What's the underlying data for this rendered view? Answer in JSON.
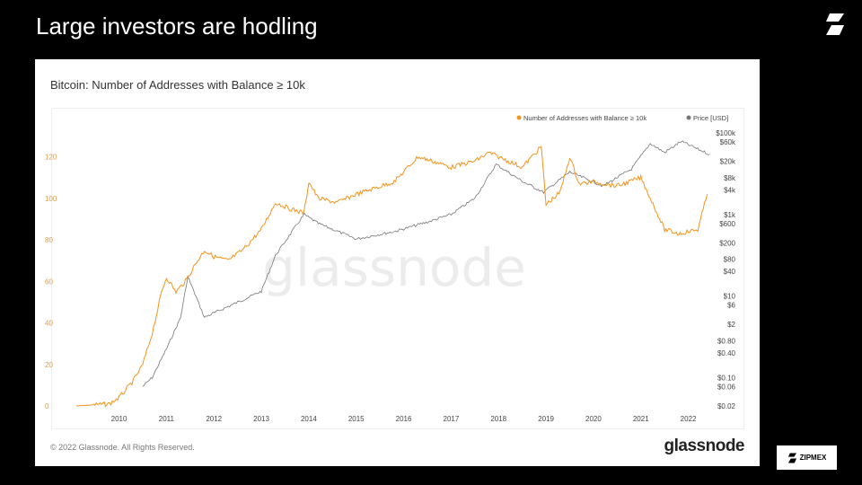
{
  "slide": {
    "title": "Large investors are hodling",
    "brand": "ZIPMEX"
  },
  "colors": {
    "orange": "#f7931a",
    "gray": "#777777"
  },
  "footer": {
    "copyright": "© 2022 Glassnode. All Rights Reserved.",
    "logo": "glassnode"
  },
  "chart_data": {
    "type": "line",
    "title": "Bitcoin: Number of Addresses with Balance ≥ 10k",
    "watermark": "glassnode",
    "legend": [
      "Number of Addresses with Balance ≥ 10k",
      "Price [USD]"
    ],
    "legend_position": "top-right",
    "x_ticks": [
      "2010",
      "2011",
      "2012",
      "2013",
      "2014",
      "2015",
      "2016",
      "2017",
      "2018",
      "2019",
      "2020",
      "2021",
      "2022"
    ],
    "xlim": [
      2009.1,
      2022.5
    ],
    "y_left_ticks": [
      "0",
      "20",
      "40",
      "60",
      "80",
      "100",
      "120"
    ],
    "ylim_left": [
      0,
      135
    ],
    "y_right_ticks": [
      "$100k",
      "$60k",
      "$20k",
      "$8k",
      "$4k",
      "$1k",
      "$600",
      "$200",
      "$80",
      "$40",
      "$10",
      "$6",
      "$2",
      "$0.80",
      "$0.40",
      "$0.10",
      "$0.06",
      "$0.02"
    ],
    "y_right_values": [
      100000,
      60000,
      20000,
      8000,
      4000,
      1000,
      600,
      200,
      80,
      40,
      10,
      6,
      2,
      0.8,
      0.4,
      0.1,
      0.06,
      0.02
    ],
    "ylim_right": [
      0.02,
      100000
    ],
    "y_right_scale": "log",
    "series": [
      {
        "name": "Number of Addresses with Balance ≥ 10k",
        "axis": "left",
        "color": "#f7931a",
        "x": [
          2009.1,
          2009.8,
          2010.0,
          2010.3,
          2010.5,
          2010.7,
          2010.9,
          2011.0,
          2011.2,
          2011.4,
          2011.6,
          2011.8,
          2012.0,
          2012.3,
          2012.6,
          2013.0,
          2013.3,
          2013.6,
          2013.9,
          2014.0,
          2014.2,
          2014.6,
          2015.0,
          2015.4,
          2015.8,
          2016.3,
          2016.6,
          2017.0,
          2017.5,
          2017.8,
          2018.2,
          2018.5,
          2018.7,
          2018.9,
          2019.0,
          2019.3,
          2019.5,
          2019.7,
          2020.0,
          2020.5,
          2021.0,
          2021.2,
          2021.5,
          2021.8,
          2022.0,
          2022.2,
          2022.4
        ],
        "y": [
          0,
          1,
          4,
          12,
          20,
          35,
          55,
          62,
          55,
          60,
          68,
          75,
          72,
          70,
          75,
          85,
          98,
          95,
          93,
          108,
          100,
          98,
          102,
          105,
          108,
          120,
          118,
          115,
          118,
          122,
          118,
          115,
          120,
          125,
          97,
          103,
          120,
          107,
          108,
          106,
          110,
          100,
          85,
          83,
          84,
          85,
          102
        ]
      },
      {
        "name": "Price [USD]",
        "axis": "right",
        "color": "#777777",
        "x": [
          2010.5,
          2010.7,
          2011.0,
          2011.3,
          2011.45,
          2011.8,
          2012.5,
          2013.0,
          2013.3,
          2013.9,
          2014.2,
          2015.0,
          2015.8,
          2016.5,
          2017.0,
          2017.5,
          2017.95,
          2018.5,
          2018.95,
          2019.5,
          2020.2,
          2020.8,
          2021.2,
          2021.5,
          2021.85,
          2022.2,
          2022.45
        ],
        "y": [
          0.06,
          0.1,
          0.5,
          3,
          30,
          3,
          7,
          13,
          100,
          1000,
          600,
          250,
          380,
          650,
          1000,
          2500,
          17000,
          6500,
          3500,
          11000,
          5000,
          13000,
          55000,
          33000,
          62000,
          40000,
          30000
        ]
      }
    ]
  }
}
